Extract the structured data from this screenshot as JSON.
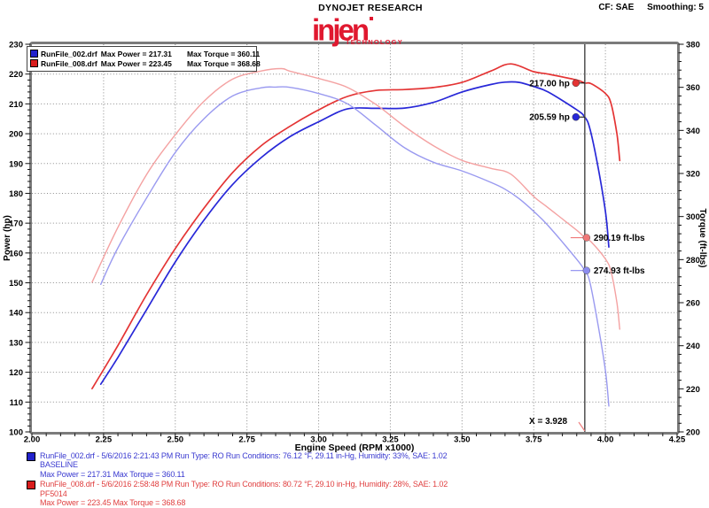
{
  "header": {
    "brand": "DYNOJET RESEARCH",
    "logo_text": "injen",
    "logo_sub": "TECHNOLOGY",
    "cf": "CF: SAE",
    "smoothing": "Smoothing: 5"
  },
  "legend": {
    "rows": [
      {
        "file": "RunFile_002.drf",
        "max_power": "Max Power = 217.31",
        "max_torque": "Max Torque = 360.11",
        "color": "#2222cc"
      },
      {
        "file": "RunFile_008.drf",
        "max_power": "Max Power = 223.45",
        "max_torque": "Max Torque = 368.68",
        "color": "#d81c1c"
      }
    ]
  },
  "chart_data": {
    "type": "line",
    "x_axis": {
      "label": "Engine Speed (RPM x1000)",
      "min": 2.0,
      "max": 4.25,
      "major_step": 0.25,
      "minor_step": 0.05,
      "tick_labels": [
        "2.00",
        "2.25",
        "2.50",
        "2.75",
        "3.00",
        "3.25",
        "3.50",
        "3.75",
        "4.00",
        "4.25"
      ]
    },
    "y_left": {
      "label": "Power (hp)",
      "min": 100,
      "max": 230,
      "major_step": 10,
      "minor_step": 2,
      "tick_labels": [
        "230",
        "220",
        "210",
        "200",
        "190",
        "180",
        "170",
        "160",
        "150",
        "140",
        "130",
        "120",
        "110",
        "100"
      ]
    },
    "y_right": {
      "label": "Torque (ft-lbs)",
      "min": 200,
      "max": 380,
      "major_step": 20,
      "minor_step": 4,
      "tick_labels": [
        "380",
        "360",
        "340",
        "320",
        "300",
        "280",
        "260",
        "240",
        "220",
        "200"
      ]
    },
    "grid": {
      "show": true,
      "style": "dotted",
      "color": "#8a8a8a"
    },
    "series": [
      {
        "name": "RunFile_002.drf Power",
        "run": "BASELINE",
        "axis": "left",
        "color": "#2828d8",
        "width": 1.7,
        "points": [
          [
            2.24,
            116
          ],
          [
            2.3,
            125
          ],
          [
            2.4,
            141
          ],
          [
            2.5,
            157
          ],
          [
            2.6,
            171
          ],
          [
            2.7,
            183
          ],
          [
            2.8,
            192
          ],
          [
            2.9,
            199
          ],
          [
            3.0,
            204
          ],
          [
            3.1,
            208.3
          ],
          [
            3.2,
            208.5
          ],
          [
            3.3,
            208.6
          ],
          [
            3.4,
            210.5
          ],
          [
            3.5,
            214
          ],
          [
            3.6,
            216.5
          ],
          [
            3.65,
            217.3
          ],
          [
            3.7,
            217.2
          ],
          [
            3.75,
            215.8
          ],
          [
            3.8,
            214
          ],
          [
            3.9,
            208
          ],
          [
            3.928,
            205.6
          ],
          [
            3.945,
            202
          ],
          [
            3.97,
            191
          ],
          [
            4.0,
            174
          ],
          [
            4.012,
            162
          ]
        ]
      },
      {
        "name": "RunFile_008.drf Power",
        "run": "PF5014",
        "axis": "left",
        "color": "#e43434",
        "width": 1.7,
        "points": [
          [
            2.21,
            114.5
          ],
          [
            2.3,
            129
          ],
          [
            2.4,
            146
          ],
          [
            2.5,
            161.5
          ],
          [
            2.6,
            175
          ],
          [
            2.7,
            187
          ],
          [
            2.8,
            196
          ],
          [
            2.9,
            202.5
          ],
          [
            3.0,
            208
          ],
          [
            3.1,
            212.5
          ],
          [
            3.2,
            214.5
          ],
          [
            3.3,
            214.8
          ],
          [
            3.4,
            215.5
          ],
          [
            3.5,
            217.2
          ],
          [
            3.6,
            221
          ],
          [
            3.67,
            223.4
          ],
          [
            3.75,
            220.8
          ],
          [
            3.8,
            220
          ],
          [
            3.9,
            218
          ],
          [
            3.928,
            217
          ],
          [
            3.95,
            216.8
          ],
          [
            4.0,
            213.5
          ],
          [
            4.02,
            210
          ],
          [
            4.04,
            200
          ],
          [
            4.05,
            191
          ]
        ]
      },
      {
        "name": "RunFile_002.drf Torque",
        "run": "BASELINE",
        "axis": "right",
        "color": "#9a9af0",
        "width": 1.4,
        "points": [
          [
            2.24,
            268.5
          ],
          [
            2.3,
            285.5
          ],
          [
            2.4,
            308.6
          ],
          [
            2.5,
            329.8
          ],
          [
            2.6,
            345.4
          ],
          [
            2.7,
            356
          ],
          [
            2.8,
            359.8
          ],
          [
            2.85,
            360.1
          ],
          [
            2.9,
            360
          ],
          [
            3.0,
            357.1
          ],
          [
            3.1,
            352.4
          ],
          [
            3.2,
            342.3
          ],
          [
            3.3,
            331.9
          ],
          [
            3.4,
            325.2
          ],
          [
            3.5,
            321.2
          ],
          [
            3.6,
            315.9
          ],
          [
            3.65,
            312.7
          ],
          [
            3.7,
            308.2
          ],
          [
            3.75,
            302.4
          ],
          [
            3.8,
            295.8
          ],
          [
            3.9,
            280.1
          ],
          [
            3.928,
            274.9
          ],
          [
            3.945,
            270
          ],
          [
            3.97,
            253
          ],
          [
            4.0,
            228.5
          ],
          [
            4.012,
            212
          ]
        ]
      },
      {
        "name": "RunFile_008.drf Torque",
        "run": "PF5014",
        "axis": "right",
        "color": "#f4a2a2",
        "width": 1.4,
        "points": [
          [
            2.21,
            269.5
          ],
          [
            2.3,
            295
          ],
          [
            2.4,
            319.5
          ],
          [
            2.5,
            338
          ],
          [
            2.6,
            353.5
          ],
          [
            2.7,
            363.8
          ],
          [
            2.8,
            367.6
          ],
          [
            2.87,
            368.7
          ],
          [
            2.9,
            367.5
          ],
          [
            3.0,
            364.1
          ],
          [
            3.1,
            360
          ],
          [
            3.2,
            352
          ],
          [
            3.3,
            341.8
          ],
          [
            3.4,
            332.9
          ],
          [
            3.5,
            326.1
          ],
          [
            3.6,
            322.4
          ],
          [
            3.67,
            319.7
          ],
          [
            3.75,
            309.3
          ],
          [
            3.8,
            304.1
          ],
          [
            3.9,
            293.6
          ],
          [
            3.928,
            290.2
          ],
          [
            3.95,
            288.3
          ],
          [
            4.0,
            280.3
          ],
          [
            4.02,
            274.3
          ],
          [
            4.04,
            260
          ],
          [
            4.05,
            247.7
          ]
        ]
      }
    ],
    "cursor": {
      "x": 3.928,
      "label": "X = 3.928"
    },
    "annotations": [
      {
        "label": "217.00 hp",
        "value": 217.0,
        "axis": "power",
        "color": "#e43434",
        "side": "left"
      },
      {
        "label": "205.59 hp",
        "value": 205.59,
        "axis": "power",
        "color": "#2828d8",
        "side": "left"
      },
      {
        "label": "290.19 ft-lbs",
        "value": 290.19,
        "axis": "torque",
        "color": "#f07878",
        "side": "right"
      },
      {
        "label": "274.93 ft-lbs",
        "value": 274.93,
        "axis": "torque",
        "color": "#8c8cf0",
        "side": "right"
      }
    ]
  },
  "footer": {
    "runs": [
      {
        "color": "#3a3ad0",
        "swatch": "#2222cc",
        "line1": "RunFile_002.drf - 5/6/2016 2:21:43 PM  Run Type: RO  Run Conditions: 76.12 °F, 29.11 in-Hg,  Humidity:  33%, SAE: 1.02",
        "line2": "BASELINE",
        "line3": "Max Power = 217.31  Max Torque = 360.11"
      },
      {
        "color": "#e04040",
        "swatch": "#d81c1c",
        "line1": "RunFile_008.drf - 5/6/2016 2:58:48 PM  Run Type: RO  Run Conditions: 80.72 °F, 29.10 in-Hg,  Humidity:  28%, SAE: 1.02",
        "line2": "PF5014",
        "line3": "Max Power = 223.45  Max Torque = 368.68"
      }
    ]
  }
}
